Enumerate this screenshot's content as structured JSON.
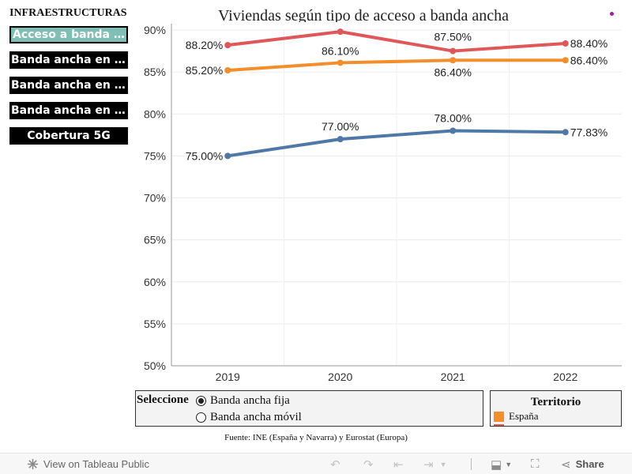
{
  "sidebar": {
    "title": "INFRAESTRUCTURAS",
    "buttons": [
      {
        "label": "Acceso a banda ancha",
        "active": true
      },
      {
        "label": "Banda ancha en hogares"
      },
      {
        "label": "Banda ancha en empresas"
      },
      {
        "label": "Banda ancha en empresas"
      },
      {
        "label": "Cobertura 5G"
      }
    ]
  },
  "chart": {
    "title": "Viviendas según tipo de acceso a banda ancha"
  },
  "chart_data": {
    "type": "line",
    "title": "Viviendas según tipo de acceso a banda ancha",
    "x": [
      "2019",
      "2020",
      "2021",
      "2022"
    ],
    "ylim": [
      50,
      90
    ],
    "yticks": [
      "50%",
      "55%",
      "60%",
      "65%",
      "70%",
      "75%",
      "80%",
      "85%",
      "90%"
    ],
    "grid": true,
    "series": [
      {
        "color": "#e05759",
        "values": [
          88.2,
          89.8,
          87.5,
          88.4
        ],
        "labels": [
          "88.20%",
          "",
          "87.50%",
          "88.40%"
        ]
      },
      {
        "name": "España",
        "color": "#f28e2b",
        "values": [
          85.2,
          86.1,
          86.4,
          86.4
        ],
        "labels": [
          "85.20%",
          "86.10%",
          "86.40%",
          "86.40%"
        ]
      },
      {
        "color": "#4e79a7",
        "values": [
          75.0,
          77.0,
          78.0,
          77.83
        ],
        "labels": [
          "75.00%",
          "77.00%",
          "78.00%",
          "77.83%"
        ]
      }
    ]
  },
  "selector": {
    "label": "Seleccione",
    "options": [
      {
        "label": "Banda ancha fija",
        "selected": true
      },
      {
        "label": "Banda ancha móvil",
        "selected": false
      }
    ]
  },
  "legend": {
    "title": "Territorio",
    "items": [
      {
        "label": "España",
        "color": "#f28e2b"
      },
      {
        "label": "",
        "color": "#e05759"
      }
    ]
  },
  "source": "Fuente: INE (España y Navarra) y Eurostat (Europa)",
  "toolbar": {
    "view_label": "View on Tableau Public",
    "share_label": "Share"
  }
}
